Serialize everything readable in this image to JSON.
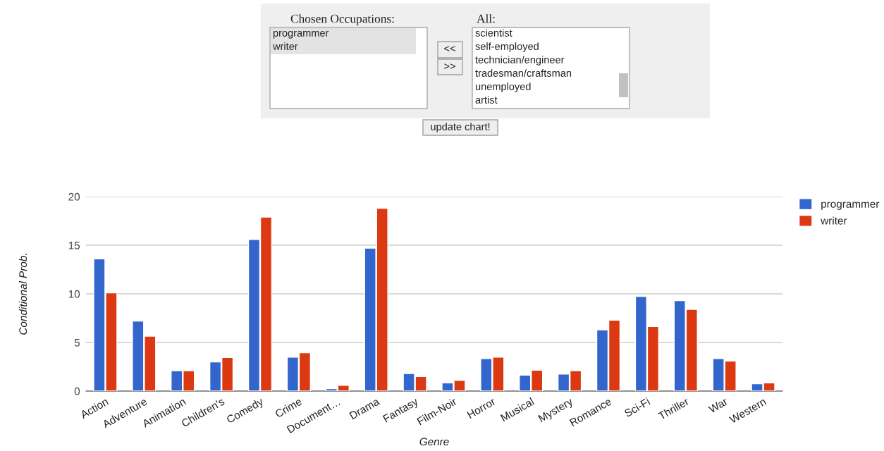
{
  "chart_data": [
    {
      "type": "other",
      "annotations": [
        "Chosen Occupations:",
        "All:",
        "programmer",
        "writer",
        "<<",
        ">>",
        "scientist",
        "self-employed",
        "technician/engineer",
        "tradesman/craftsman",
        "unemployed",
        "artist",
        "update chart!"
      ]
    },
    {
      "type": "bar",
      "xlabel": "Genre",
      "ylabel": "Conditional Prob.",
      "categories": [
        "Action",
        "Adventure",
        "Animation",
        "Children's",
        "Comedy",
        "Crime",
        "Document…",
        "Drama",
        "Fantasy",
        "Film-Noir",
        "Horror",
        "Musical",
        "Mystery",
        "Romance",
        "Sci-Fi",
        "Thriller",
        "War",
        "Western"
      ],
      "series": [
        {
          "name": "programmer",
          "color": "#3366cc",
          "values": [
            13.6,
            7.2,
            2.1,
            3.0,
            15.6,
            3.5,
            0.25,
            14.7,
            1.8,
            0.85,
            3.35,
            1.65,
            1.75,
            6.3,
            9.75,
            9.3,
            3.35,
            0.75
          ]
        },
        {
          "name": "writer",
          "color": "#dc3912",
          "values": [
            10.1,
            5.65,
            2.1,
            3.45,
            17.9,
            3.95,
            0.6,
            18.8,
            1.5,
            1.1,
            3.5,
            2.15,
            2.1,
            7.3,
            6.65,
            8.4,
            3.1,
            0.85
          ]
        }
      ],
      "ylim": [
        0,
        20
      ],
      "yticks": [
        0,
        5,
        10,
        15,
        20
      ],
      "grid": "y",
      "legend": "top right"
    }
  ]
}
